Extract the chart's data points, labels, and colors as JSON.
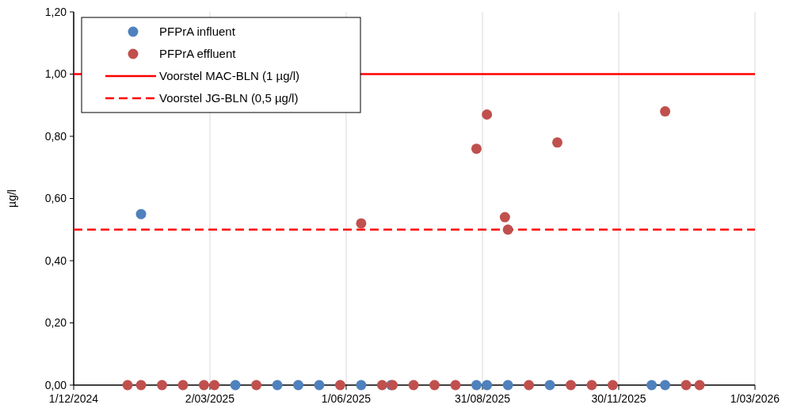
{
  "chart_data": {
    "type": "scatter",
    "ylabel": "µg/l",
    "xlim": [
      "2024-12-01",
      "2026-03-01"
    ],
    "xticks": [
      {
        "value": "2024-12-01",
        "label": "1/12/2024"
      },
      {
        "value": "2025-03-02",
        "label": "2/03/2025"
      },
      {
        "value": "2025-06-01",
        "label": "1/06/2025"
      },
      {
        "value": "2025-08-31",
        "label": "31/08/2025"
      },
      {
        "value": "2025-11-30",
        "label": "30/11/2025"
      },
      {
        "value": "2026-03-01",
        "label": "1/03/2026"
      }
    ],
    "ylim": [
      0,
      1.2
    ],
    "yticks": [
      {
        "value": 0,
        "label": "0,00"
      },
      {
        "value": 0.2,
        "label": "0,20"
      },
      {
        "value": 0.4,
        "label": "0,40"
      },
      {
        "value": 0.6,
        "label": "0,60"
      },
      {
        "value": 0.8,
        "label": "0,80"
      },
      {
        "value": 1,
        "label": "1,00"
      },
      {
        "value": 1.2,
        "label": "1,20"
      }
    ],
    "grid": "x",
    "legend": "top left",
    "marker": "circle",
    "series": [
      {
        "name": "PFPrA influent",
        "color": "#4f81bd",
        "x": [
          "2025-01-15",
          "2025-03-19",
          "2025-04-16",
          "2025-04-30",
          "2025-05-14",
          "2025-06-11",
          "2025-07-01",
          "2025-08-27",
          "2025-09-03",
          "2025-09-17",
          "2025-10-15",
          "2025-12-22",
          "2025-12-31"
        ],
        "values": [
          0.55,
          0,
          0,
          0,
          0,
          0,
          0,
          0,
          0,
          0,
          0,
          0,
          0
        ]
      },
      {
        "name": "PFPrA effluent",
        "color": "#c0504d",
        "x": [
          "2025-01-06",
          "2025-01-15",
          "2025-01-29",
          "2025-02-12",
          "2025-02-26",
          "2025-03-05",
          "2025-04-02",
          "2025-05-28",
          "2025-06-11",
          "2025-06-25",
          "2025-07-02",
          "2025-07-16",
          "2025-07-30",
          "2025-08-13",
          "2025-08-27",
          "2025-09-03",
          "2025-09-15",
          "2025-09-17",
          "2025-10-01",
          "2025-10-20",
          "2025-10-29",
          "2025-11-12",
          "2025-11-26",
          "2025-12-31",
          "2026-01-14",
          "2026-01-23"
        ],
        "values": [
          0,
          0,
          0,
          0,
          0,
          0,
          0,
          0,
          0.52,
          0,
          0,
          0,
          0,
          0,
          0.76,
          0.87,
          0.54,
          0.5,
          0,
          0.78,
          0,
          0,
          0,
          0.88,
          0,
          0
        ]
      }
    ],
    "ref_lines": [
      {
        "axis": "y",
        "value": 1,
        "label": "Voorstel MAC-BLN (1 µg/l)",
        "color": "#ff0000",
        "line_style": "solid"
      },
      {
        "axis": "y",
        "value": 0.5,
        "label": "Voorstel JG-BLN (0,5 µg/l)",
        "color": "#ff0000",
        "line_style": "dashed"
      }
    ]
  }
}
